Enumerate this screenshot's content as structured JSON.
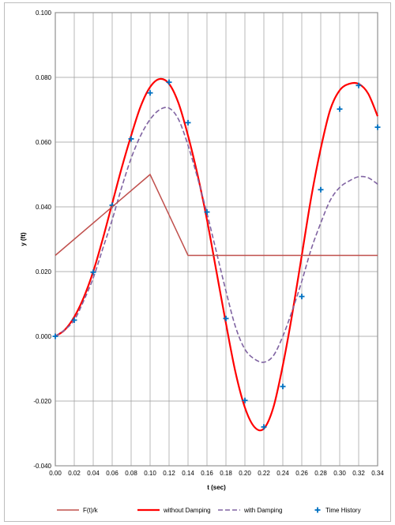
{
  "chart_data": {
    "type": "line",
    "xlabel": "t (sec)",
    "ylabel": "y (ft)",
    "xlim": [
      0,
      0.34
    ],
    "ylim": [
      -0.04,
      0.1
    ],
    "xticks": [
      "0.00",
      "0.02",
      "0.04",
      "0.06",
      "0.08",
      "0.10",
      "0.12",
      "0.14",
      "0.16",
      "0.18",
      "0.20",
      "0.22",
      "0.24",
      "0.26",
      "0.28",
      "0.30",
      "0.32",
      "0.34"
    ],
    "yticks": [
      "-0.040",
      "-0.020",
      "0.000",
      "0.020",
      "0.040",
      "0.060",
      "0.080",
      "0.100"
    ],
    "grid": true,
    "legend_position": "bottom",
    "series": [
      {
        "name": "F(t)/k",
        "style": "solid",
        "color": "#c0504d",
        "x": [
          0,
          0.1,
          0.14,
          0.34
        ],
        "y": [
          0.025,
          0.05,
          0.025,
          0.025
        ]
      },
      {
        "name": "without Damping",
        "style": "solid",
        "color": "#ff0000",
        "x": [
          0,
          0.01,
          0.02,
          0.03,
          0.04,
          0.05,
          0.06,
          0.07,
          0.08,
          0.09,
          0.1,
          0.11,
          0.12,
          0.13,
          0.14,
          0.15,
          0.16,
          0.17,
          0.18,
          0.19,
          0.2,
          0.21,
          0.22,
          0.23,
          0.24,
          0.25,
          0.26,
          0.27,
          0.28,
          0.29,
          0.3,
          0.31,
          0.32,
          0.33,
          0.34
        ],
        "y": [
          0,
          0.002,
          0.006,
          0.012,
          0.02,
          0.03,
          0.041,
          0.052,
          0.062,
          0.071,
          0.077,
          0.0795,
          0.078,
          0.072,
          0.062,
          0.05,
          0.036,
          0.02,
          0.004,
          -0.011,
          -0.022,
          -0.028,
          -0.0285,
          -0.022,
          -0.009,
          0.007,
          0.025,
          0.043,
          0.058,
          0.07,
          0.076,
          0.078,
          0.078,
          0.075,
          0.068
        ]
      },
      {
        "name": "with Damping",
        "style": "dashed",
        "color": "#8064a2",
        "x": [
          0,
          0.01,
          0.02,
          0.03,
          0.04,
          0.05,
          0.06,
          0.07,
          0.08,
          0.09,
          0.1,
          0.11,
          0.12,
          0.13,
          0.14,
          0.15,
          0.16,
          0.17,
          0.18,
          0.19,
          0.2,
          0.21,
          0.22,
          0.23,
          0.24,
          0.25,
          0.26,
          0.27,
          0.28,
          0.29,
          0.3,
          0.31,
          0.32,
          0.33,
          0.34
        ],
        "y": [
          0,
          0.002,
          0.005,
          0.011,
          0.018,
          0.027,
          0.036,
          0.046,
          0.055,
          0.062,
          0.067,
          0.07,
          0.0705,
          0.067,
          0.059,
          0.049,
          0.038,
          0.026,
          0.014,
          0.003,
          -0.004,
          -0.007,
          -0.008,
          -0.006,
          0.0,
          0.008,
          0.017,
          0.027,
          0.035,
          0.042,
          0.046,
          0.048,
          0.0493,
          0.049,
          0.047
        ]
      },
      {
        "name": "Time History",
        "style": "markers",
        "color": "#0070c0",
        "x": [
          0,
          0.02,
          0.04,
          0.06,
          0.08,
          0.1,
          0.12,
          0.14,
          0.16,
          0.18,
          0.2,
          0.22,
          0.24,
          0.26,
          0.28,
          0.3,
          0.32,
          0.34
        ],
        "y": [
          0,
          0.005,
          0.0198,
          0.0405,
          0.061,
          0.0752,
          0.0785,
          0.066,
          0.0384,
          0.0055,
          -0.0198,
          -0.028,
          -0.0155,
          0.0123,
          0.0453,
          0.0702,
          0.0775,
          0.0646
        ]
      }
    ]
  }
}
